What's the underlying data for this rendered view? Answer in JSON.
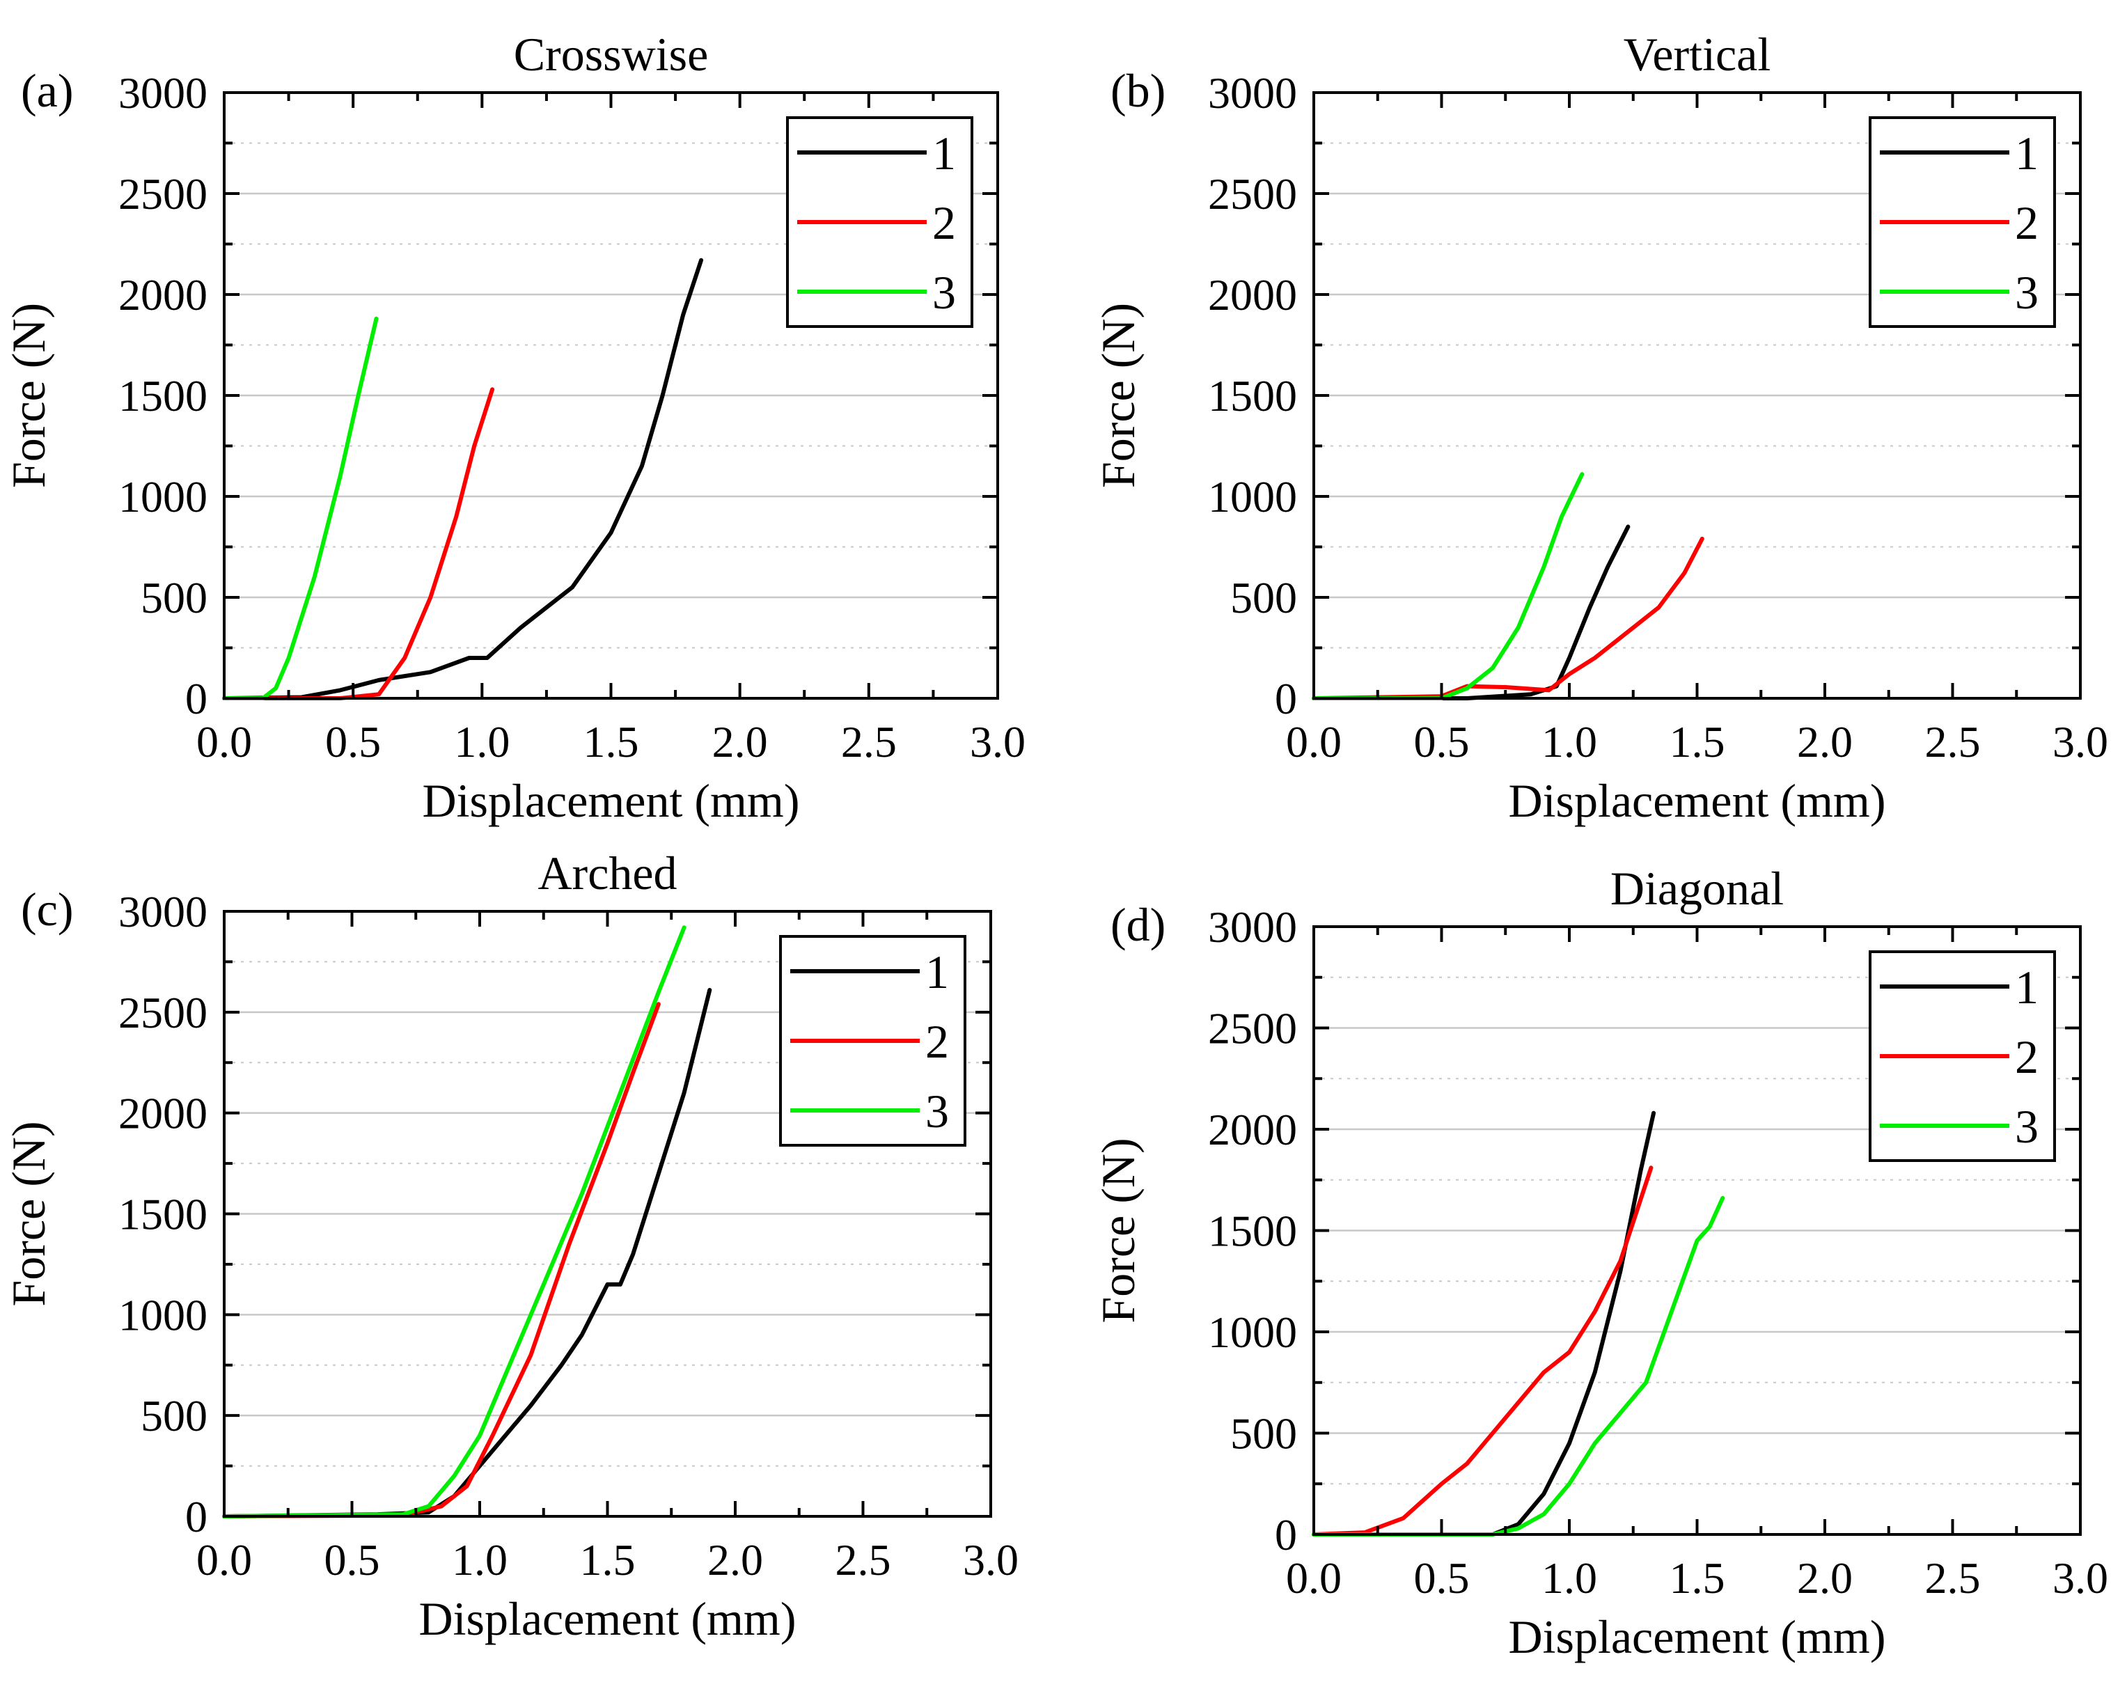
{
  "chart_data": [
    {
      "panel": "(a)",
      "type": "line",
      "title": "Crosswise",
      "xlabel": "Displacement (mm)",
      "ylabel": "Force (N)",
      "xlim": [
        0,
        3
      ],
      "ylim": [
        0,
        3000
      ],
      "xticks": [
        "0.0",
        "0.5",
        "1.0",
        "1.5",
        "2.0",
        "2.5",
        "3.0"
      ],
      "yticks": [
        "0",
        "500",
        "1000",
        "1500",
        "2000",
        "2500",
        "3000"
      ],
      "grid": true,
      "legend": "top-right",
      "series": [
        {
          "name": "1",
          "color": "#000000",
          "x": [
            0.0,
            0.3,
            0.45,
            0.6,
            0.8,
            0.95,
            1.02,
            1.15,
            1.35,
            1.5,
            1.62,
            1.7,
            1.78,
            1.85
          ],
          "y": [
            0,
            5,
            40,
            90,
            130,
            200,
            200,
            350,
            550,
            820,
            1150,
            1500,
            1900,
            2170
          ]
        },
        {
          "name": "2",
          "color": "#ff0000",
          "x": [
            0.0,
            0.45,
            0.6,
            0.7,
            0.8,
            0.9,
            0.97,
            1.04
          ],
          "y": [
            0,
            0,
            20,
            200,
            500,
            900,
            1250,
            1530
          ]
        },
        {
          "name": "3",
          "color": "#00ee00",
          "x": [
            0.0,
            0.15,
            0.2,
            0.25,
            0.35,
            0.45,
            0.52,
            0.59
          ],
          "y": [
            0,
            0,
            50,
            200,
            600,
            1100,
            1500,
            1880
          ]
        }
      ]
    },
    {
      "panel": "(b)",
      "type": "line",
      "title": "Vertical",
      "xlabel": "Displacement (mm)",
      "ylabel": "Force (N)",
      "xlim": [
        0,
        3
      ],
      "ylim": [
        0,
        3000
      ],
      "xticks": [
        "0.0",
        "0.5",
        "1.0",
        "1.5",
        "2.0",
        "2.5",
        "3.0"
      ],
      "yticks": [
        "0",
        "500",
        "1000",
        "1500",
        "2000",
        "2500",
        "3000"
      ],
      "grid": true,
      "legend": "top-right",
      "series": [
        {
          "name": "1",
          "color": "#000000",
          "x": [
            0.0,
            0.6,
            0.85,
            0.95,
            1.0,
            1.08,
            1.15,
            1.23
          ],
          "y": [
            0,
            0,
            20,
            60,
            200,
            450,
            650,
            850
          ]
        },
        {
          "name": "2",
          "color": "#ff0000",
          "x": [
            0.0,
            0.5,
            0.6,
            0.75,
            0.92,
            1.0,
            1.1,
            1.2,
            1.35,
            1.45,
            1.52
          ],
          "y": [
            0,
            10,
            60,
            55,
            40,
            120,
            200,
            300,
            450,
            620,
            790
          ]
        },
        {
          "name": "3",
          "color": "#00ee00",
          "x": [
            0.0,
            0.5,
            0.6,
            0.7,
            0.8,
            0.9,
            0.97,
            1.05
          ],
          "y": [
            0,
            0,
            50,
            150,
            350,
            650,
            900,
            1110
          ]
        }
      ]
    },
    {
      "panel": "(c)",
      "type": "line",
      "title": "Arched",
      "xlabel": "Displacement (mm)",
      "ylabel": "Force (N)",
      "xlim": [
        0,
        3
      ],
      "ylim": [
        0,
        3000
      ],
      "xticks": [
        "0.0",
        "0.5",
        "1.0",
        "1.5",
        "2.0",
        "2.5",
        "3.0"
      ],
      "yticks": [
        "0",
        "500",
        "1000",
        "1500",
        "2000",
        "2500",
        "3000"
      ],
      "grid": true,
      "legend": "top-right",
      "series": [
        {
          "name": "1",
          "color": "#000000",
          "x": [
            0.0,
            0.6,
            0.8,
            0.9,
            1.0,
            1.1,
            1.2,
            1.32,
            1.4,
            1.5,
            1.55,
            1.6,
            1.7,
            1.8,
            1.9
          ],
          "y": [
            0,
            10,
            20,
            100,
            250,
            400,
            550,
            750,
            900,
            1150,
            1150,
            1300,
            1700,
            2100,
            2610
          ]
        },
        {
          "name": "2",
          "color": "#ff0000",
          "x": [
            0.0,
            0.7,
            0.85,
            0.95,
            1.05,
            1.2,
            1.35,
            1.5,
            1.6,
            1.7
          ],
          "y": [
            0,
            5,
            50,
            150,
            400,
            800,
            1350,
            1850,
            2200,
            2540
          ]
        },
        {
          "name": "3",
          "color": "#00ee00",
          "x": [
            0.0,
            0.7,
            0.8,
            0.9,
            1.0,
            1.1,
            1.25,
            1.4,
            1.55,
            1.7,
            1.8
          ],
          "y": [
            0,
            10,
            50,
            200,
            400,
            700,
            1150,
            1600,
            2100,
            2600,
            2920
          ]
        }
      ]
    },
    {
      "panel": "(d)",
      "type": "line",
      "title": "Diagonal",
      "xlabel": "Displacement (mm)",
      "ylabel": "Force (N)",
      "xlim": [
        0,
        3
      ],
      "ylim": [
        0,
        3000
      ],
      "xticks": [
        "0.0",
        "0.5",
        "1.0",
        "1.5",
        "2.0",
        "2.5",
        "3.0"
      ],
      "yticks": [
        "0",
        "500",
        "1000",
        "1500",
        "2000",
        "2500",
        "3000"
      ],
      "grid": true,
      "legend": "top-right",
      "series": [
        {
          "name": "1",
          "color": "#000000",
          "x": [
            0.0,
            0.7,
            0.8,
            0.9,
            1.0,
            1.1,
            1.2,
            1.28,
            1.33
          ],
          "y": [
            0,
            0,
            50,
            200,
            450,
            800,
            1300,
            1800,
            2080
          ]
        },
        {
          "name": "2",
          "color": "#ff0000",
          "x": [
            0.0,
            0.2,
            0.35,
            0.5,
            0.6,
            0.7,
            0.8,
            0.9,
            1.0,
            1.1,
            1.2,
            1.32
          ],
          "y": [
            0,
            10,
            80,
            250,
            350,
            500,
            650,
            800,
            900,
            1100,
            1350,
            1810
          ]
        },
        {
          "name": "3",
          "color": "#00ee00",
          "x": [
            0.0,
            0.7,
            0.8,
            0.9,
            1.0,
            1.1,
            1.2,
            1.3,
            1.4,
            1.5,
            1.55,
            1.6
          ],
          "y": [
            0,
            0,
            30,
            100,
            250,
            450,
            600,
            750,
            1100,
            1450,
            1520,
            1660
          ]
        }
      ]
    }
  ]
}
